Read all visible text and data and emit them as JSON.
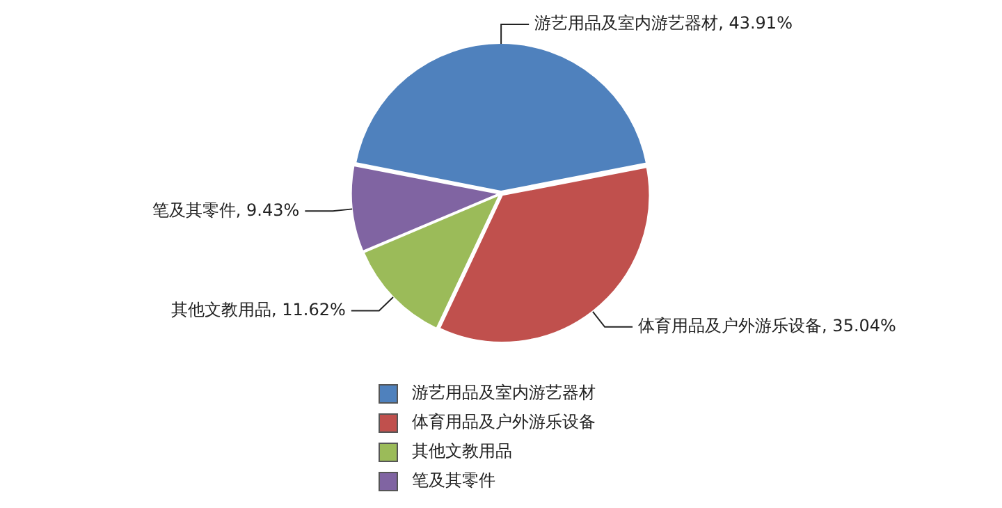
{
  "chart_data": {
    "type": "pie",
    "categories": [
      "游艺用品及室内游艺器材",
      "体育用品及户外游乐设备",
      "其他文教用品",
      "笔及其零件"
    ],
    "values": [
      43.91,
      35.04,
      11.62,
      9.43
    ],
    "colors": [
      "#4f81bd",
      "#c0504d",
      "#9bbb59",
      "#8064a2"
    ],
    "value_labels": [
      "游艺用品及室内游艺器材, 43.91%",
      "体育用品及户外游乐设备, 35.04%",
      "其他文教用品, 11.62%",
      "笔及其零件, 9.43%"
    ],
    "legend": "bottom"
  }
}
